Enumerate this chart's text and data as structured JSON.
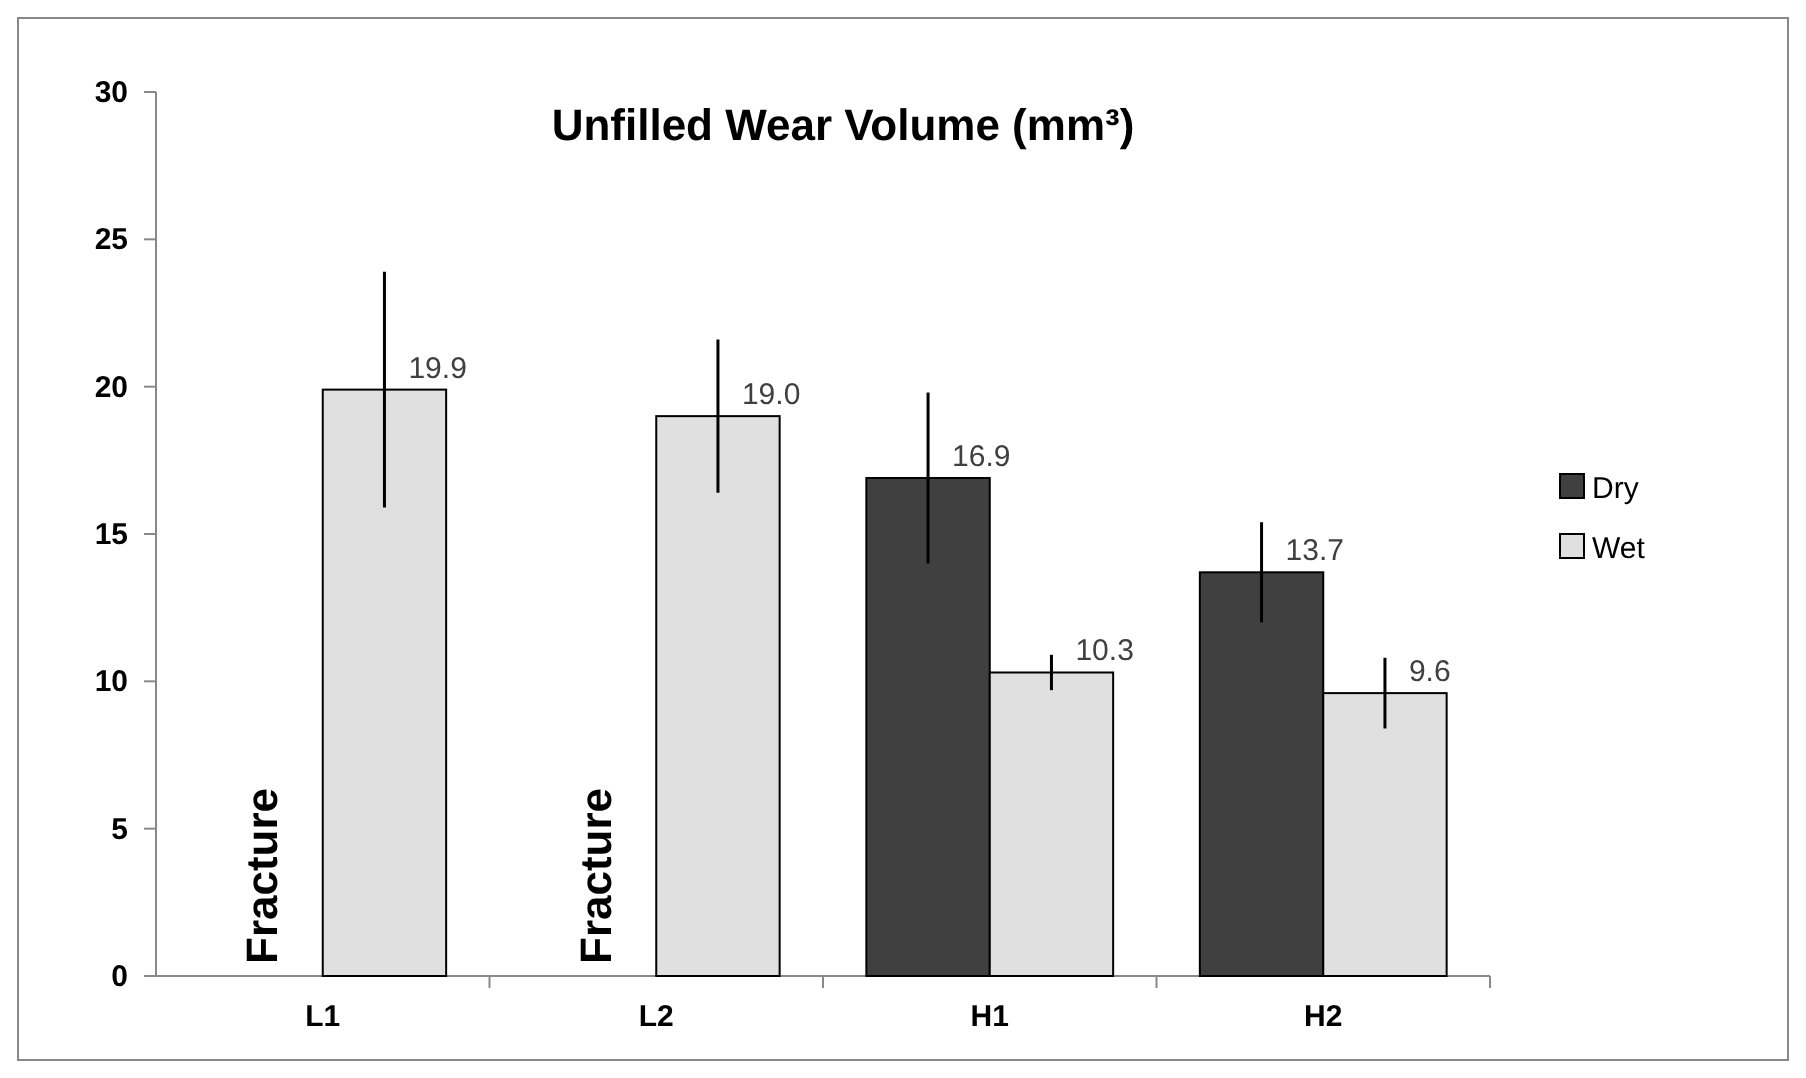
{
  "chart_data": {
    "type": "bar",
    "title": "Unfilled Wear Volume (mm³)",
    "categories": [
      "L1",
      "L2",
      "H1",
      "H2"
    ],
    "series": [
      {
        "name": "Dry",
        "color": "#404040",
        "values": [
          null,
          null,
          16.9,
          13.7
        ],
        "value_labels": [
          null,
          null,
          "16.9",
          "13.7"
        ],
        "errors": [
          null,
          null,
          2.9,
          1.7
        ]
      },
      {
        "name": "Wet",
        "color": "#e0e0e0",
        "values": [
          19.9,
          19.0,
          10.3,
          9.6
        ],
        "value_labels": [
          "19.9",
          "19.0",
          "10.3",
          "9.6"
        ],
        "errors": [
          4.0,
          2.6,
          0.6,
          1.2
        ]
      }
    ],
    "ylim": [
      0,
      30
    ],
    "yticks": [
      0,
      5,
      10,
      15,
      20,
      25,
      30
    ],
    "legend": "right",
    "grid": false,
    "annotations": [
      {
        "text": "Fracture",
        "x": "L1",
        "y": 0
      },
      {
        "text": "Fracture",
        "x": "L2",
        "y": 0
      }
    ]
  }
}
